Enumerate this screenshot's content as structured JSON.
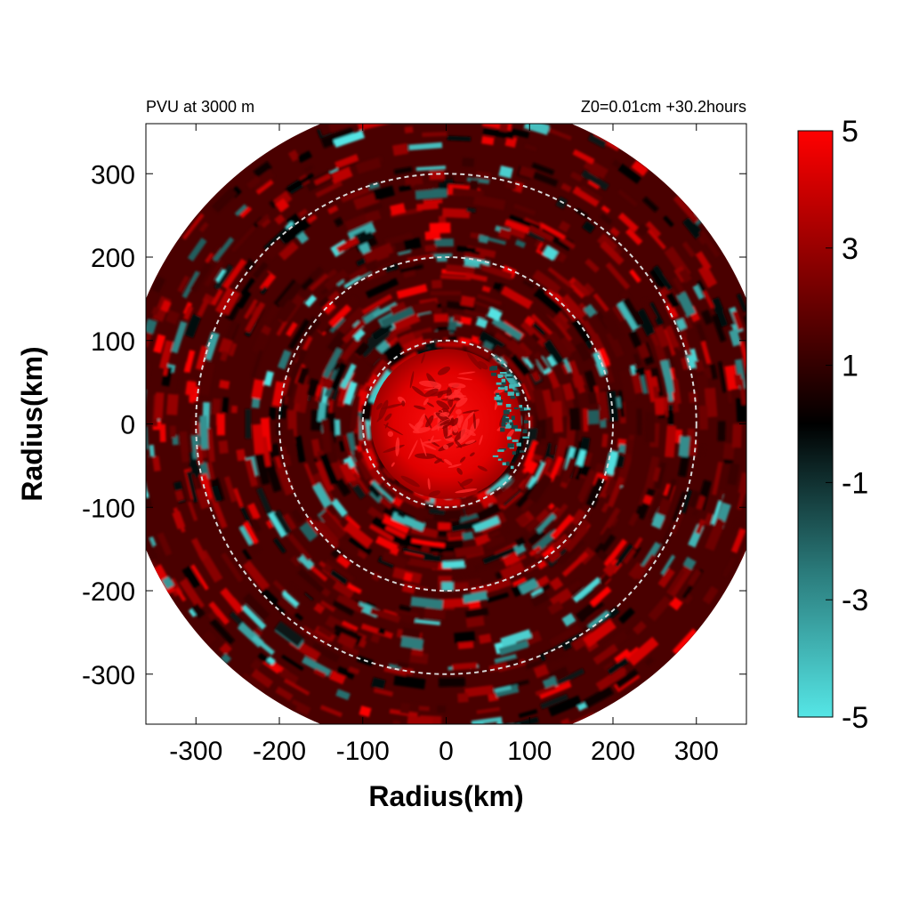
{
  "chart_data": {
    "type": "heatmap",
    "title_left": "PVU at  3000 m",
    "title_right": "Z0=0.01cm  +30.2hours",
    "xlabel": "Radius(km)",
    "ylabel": "Radius(km)",
    "xlim": [
      -360,
      360
    ],
    "ylim": [
      -360,
      360
    ],
    "xticks": [
      "-300",
      "-200",
      "-100",
      "0",
      "100",
      "200",
      "300"
    ],
    "yticks": [
      "300",
      "200",
      "100",
      "0",
      "-100",
      "-200",
      "-300"
    ],
    "domain_radius_km": 390,
    "reference_circles_km": [
      100,
      200,
      300
    ],
    "colorbar": {
      "min": -5,
      "max": 5,
      "tick_labels": [
        "5",
        "3",
        "1",
        "-1",
        "-3",
        "-5"
      ],
      "colors": {
        "low": "#55e6e6",
        "mid": "#000000",
        "high": "#ff0000"
      }
    },
    "field_description_values": {
      "core_radius_km": 90,
      "core_value": 5,
      "outer_background_value": 1.5
    }
  }
}
